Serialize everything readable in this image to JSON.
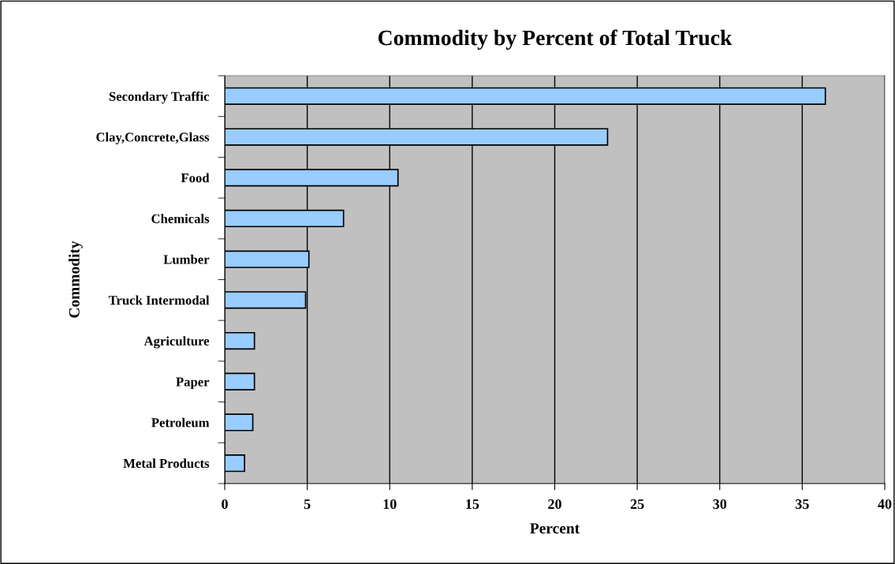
{
  "chart_data": {
    "type": "bar",
    "orientation": "horizontal",
    "title": "Commodity by Percent of Total Truck",
    "xlabel": "Percent",
    "ylabel": "Commodity",
    "categories": [
      "Secondary Traffic",
      "Clay,Concrete,Glass",
      "Food",
      "Chemicals",
      "Lumber",
      "Truck Intermodal",
      "Agriculture",
      "Paper",
      "Petroleum",
      "Metal Products"
    ],
    "values": [
      36.4,
      23.2,
      10.5,
      7.2,
      5.1,
      4.9,
      1.8,
      1.8,
      1.7,
      1.2
    ],
    "color": "#99ccff",
    "xlim": [
      0,
      40
    ],
    "xticks": [
      0,
      5,
      10,
      15,
      20,
      25,
      30,
      35,
      40
    ],
    "grid": "x",
    "legend": false
  }
}
